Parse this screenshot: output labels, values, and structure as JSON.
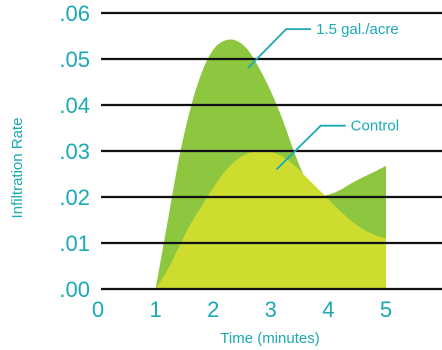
{
  "colors": {
    "accent": "#1ba9b4",
    "treated_fill": "#8dc63f",
    "control_fill": "#cddc2f",
    "grid": "#111111"
  },
  "chart_data": {
    "type": "area",
    "title": "",
    "xlabel": "Time (minutes)",
    "ylabel": "Infiltration Rate",
    "xlim": [
      0,
      6
    ],
    "ylim": [
      0,
      0.06
    ],
    "x_ticks": [
      0,
      1,
      2,
      3,
      4,
      5
    ],
    "x_tick_labels": [
      "0",
      "1",
      "2",
      "3",
      "4",
      "5"
    ],
    "y_ticks": [
      0,
      0.01,
      0.02,
      0.03,
      0.04,
      0.05,
      0.06
    ],
    "y_tick_labels": [
      ".00",
      ".01",
      ".02",
      ".03",
      ".04",
      ".05",
      ".06"
    ],
    "grid": "horizontal",
    "series": [
      {
        "name": "1.5 gal./acre",
        "x": [
          1.0,
          1.2,
          1.4,
          1.6,
          1.8,
          2.0,
          2.2,
          2.4,
          2.6,
          2.8,
          3.0,
          3.2,
          3.4,
          3.6,
          3.8,
          4.0,
          4.2,
          4.4,
          4.6,
          4.8,
          5.0
        ],
        "y": [
          0.0,
          0.014,
          0.028,
          0.039,
          0.047,
          0.052,
          0.054,
          0.054,
          0.052,
          0.048,
          0.043,
          0.037,
          0.03,
          0.024,
          0.0205,
          0.0205,
          0.0215,
          0.023,
          0.0243,
          0.0255,
          0.0268
        ],
        "color": "#8dc63f"
      },
      {
        "name": "Control",
        "x": [
          1.0,
          1.2,
          1.4,
          1.6,
          1.8,
          2.0,
          2.2,
          2.4,
          2.6,
          2.8,
          3.0,
          3.2,
          3.4,
          3.6,
          3.8,
          4.0,
          4.2,
          4.4,
          4.6,
          4.8,
          5.0
        ],
        "y": [
          0.0,
          0.004,
          0.009,
          0.014,
          0.018,
          0.022,
          0.0255,
          0.028,
          0.0295,
          0.03,
          0.0298,
          0.0288,
          0.027,
          0.0245,
          0.022,
          0.0195,
          0.017,
          0.0148,
          0.013,
          0.0118,
          0.011
        ],
        "color": "#cddc2f"
      }
    ],
    "annotations": [
      {
        "text": "1.5 gal./acre",
        "series": "1.5 gal./acre",
        "at": [
          2.6,
          0.048
        ],
        "label_anchor": [
          3.7,
          0.0565
        ]
      },
      {
        "text": "Control",
        "series": "Control",
        "at": [
          3.1,
          0.026
        ],
        "label_anchor": [
          4.3,
          0.0355
        ]
      }
    ]
  }
}
